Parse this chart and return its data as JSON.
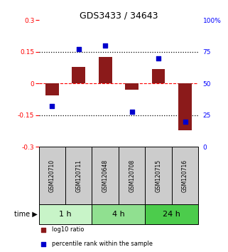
{
  "title": "GDS3433 / 34643",
  "samples": [
    "GSM120710",
    "GSM120711",
    "GSM120648",
    "GSM120708",
    "GSM120715",
    "GSM120716"
  ],
  "log10_ratio": [
    -0.055,
    0.08,
    0.125,
    -0.03,
    0.07,
    -0.22
  ],
  "percentile_rank": [
    32,
    77,
    80,
    28,
    70,
    20
  ],
  "groups": [
    {
      "label": "1 h",
      "samples": [
        0,
        1
      ],
      "color": "#c8f4c8"
    },
    {
      "label": "4 h",
      "samples": [
        2,
        3
      ],
      "color": "#90e090"
    },
    {
      "label": "24 h",
      "samples": [
        4,
        5
      ],
      "color": "#4ccc4c"
    }
  ],
  "row_label": "time",
  "bar_color": "#8b1a1a",
  "dot_color": "#0000cc",
  "ylim_left": [
    -0.3,
    0.3
  ],
  "ylim_right": [
    0,
    100
  ],
  "yticks_left": [
    -0.3,
    -0.15,
    0,
    0.15,
    0.3
  ],
  "ytick_labels_left": [
    "-0.3",
    "-0.15",
    "0",
    "0.15",
    "0.3"
  ],
  "yticks_right": [
    0,
    25,
    50,
    75,
    100
  ],
  "ytick_labels_right": [
    "0",
    "25",
    "50",
    "75",
    "100%"
  ],
  "hlines_dotted": [
    -0.15,
    0.15
  ],
  "hline_dashed": 0,
  "legend_items": [
    {
      "label": "log10 ratio",
      "color": "#8b1a1a"
    },
    {
      "label": "percentile rank within the sample",
      "color": "#0000cc"
    }
  ],
  "sample_box_color": "#cccccc",
  "bar_width": 0.5,
  "dot_size": 22
}
